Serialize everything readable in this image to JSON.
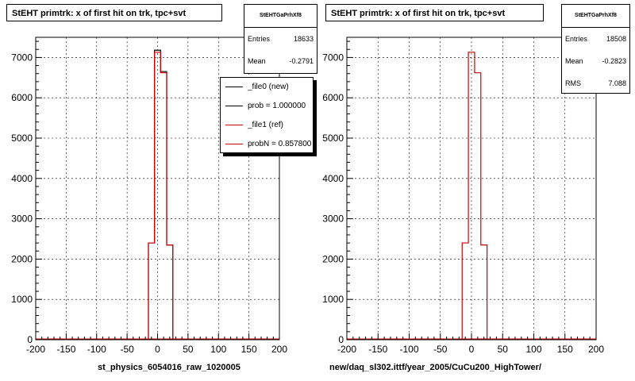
{
  "colors": {
    "new": "#000000",
    "ref": "#cc0000",
    "grid": "#000000"
  },
  "chart_data": [
    {
      "type": "histogram",
      "title": "StEHT primtrk: x of first hit on trk, tpc+svt",
      "xlabel": "st_physics_6054016_raw_1020005",
      "xlim": [
        -200,
        200
      ],
      "ylim": [
        0,
        7500
      ],
      "xticks": [
        -200,
        -150,
        -100,
        -50,
        0,
        50,
        100,
        150,
        200
      ],
      "yticks": [
        0,
        1000,
        2000,
        3000,
        4000,
        5000,
        6000,
        7000
      ],
      "grid": true,
      "bin_edges": [
        -15,
        -5,
        5,
        15,
        25
      ],
      "series": [
        {
          "name": "_file0 (new)",
          "color": "#000000",
          "values": [
            2400,
            7180,
            6650,
            2350
          ]
        },
        {
          "name": "_file1 (ref)",
          "color": "#cc0000",
          "values": [
            2400,
            7130,
            6620,
            2350
          ]
        }
      ],
      "stats": {
        "name": "StEHTGaPrhXf8",
        "rows": [
          {
            "label": "Entries",
            "value": "18633"
          },
          {
            "label": "Mean",
            "value": "-0.2791"
          }
        ]
      },
      "legend": {
        "position": "top-right",
        "entries": [
          {
            "text": "_file0 (new)",
            "color": "#000000"
          },
          {
            "text": "prob = 1.000000",
            "color": "#000000"
          },
          {
            "text": "_file1 (ref)",
            "color": "#cc0000"
          },
          {
            "text": "probN = 0.857800",
            "color": "#cc0000"
          }
        ]
      }
    },
    {
      "type": "histogram",
      "title": "StEHT primtrk: x of first hit on trk, tpc+svt",
      "xlabel": "new/daq_sl302.ittf/year_2005/CuCu200_HighTower/",
      "xlim": [
        -200,
        200
      ],
      "ylim": [
        0,
        7500
      ],
      "xticks": [
        -200,
        -150,
        -100,
        -50,
        0,
        50,
        100,
        150,
        200
      ],
      "yticks": [
        0,
        1000,
        2000,
        3000,
        4000,
        5000,
        6000,
        7000
      ],
      "grid": true,
      "bin_edges": [
        -15,
        -5,
        5,
        15,
        25
      ],
      "series": [
        {
          "name": "",
          "color": "#cc0000",
          "values": [
            2400,
            7130,
            6620,
            2350
          ]
        }
      ],
      "stats": {
        "name": "StEHTGaPrhXf8",
        "rows": [
          {
            "label": "Entries",
            "value": "18508"
          },
          {
            "label": "Mean",
            "value": "-0.2823"
          },
          {
            "label": "RMS",
            "value": "7.088"
          }
        ]
      }
    }
  ]
}
